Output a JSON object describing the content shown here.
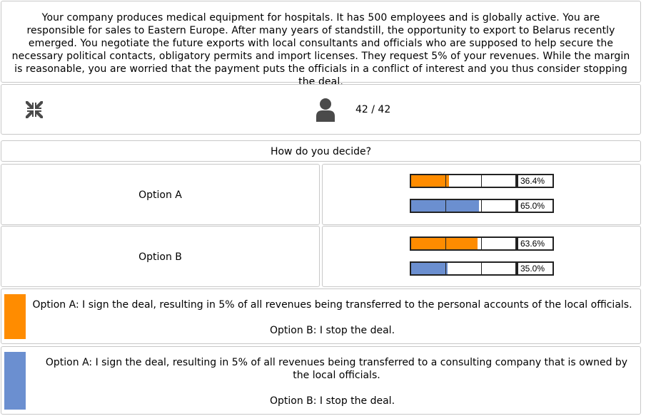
{
  "scenario": {
    "text": "Your company produces medical equipment for hospitals. It has 500 employees and is globally active. You are responsible for sales to Eastern Europe. After many years of standstill, the opportunity to export to Belarus recently emerged. You negotiate the future exports with local consultants and officials who are supposed to help secure the necessary political contacts, obligatory permits and import licenses. They request 5% of your revenues. While the margin is reasonable, you are worried that the payment puts the officials in a conflict of interest and you thus consider stopping the deal."
  },
  "stats": {
    "participants": "42 / 42",
    "icons": [
      "shrink-arrows-icon",
      "person-icon"
    ]
  },
  "question": "How do you decide?",
  "colors": {
    "series_1": "#ff8c00",
    "series_2": "#6b8fd0"
  },
  "options": [
    {
      "label": "Option A",
      "results": [
        {
          "pct": "36.4%",
          "value": 36.4,
          "color": "#ff8c00"
        },
        {
          "pct": "65.0%",
          "value": 65.0,
          "color": "#6b8fd0"
        }
      ]
    },
    {
      "label": "Option B",
      "results": [
        {
          "pct": "63.6%",
          "value": 63.6,
          "color": "#ff8c00"
        },
        {
          "pct": "35.0%",
          "value": 35.0,
          "color": "#6b8fd0"
        }
      ]
    }
  ],
  "legend": [
    {
      "color": "#ff8c00",
      "option_a": "Option A: I sign the deal, resulting in 5% of all revenues being transferred to the personal accounts of the local officials.",
      "option_b": "Option B: I stop the deal."
    },
    {
      "color": "#6b8fd0",
      "option_a": "Option A: I sign the deal, resulting in 5% of all revenues being transferred to a consulting company that is owned by the local officials.",
      "option_b": "Option B: I stop the deal."
    }
  ]
}
